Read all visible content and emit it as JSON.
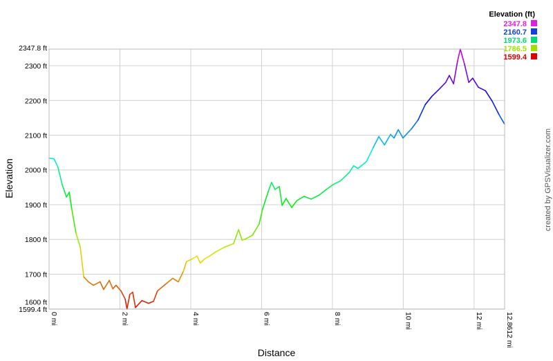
{
  "chart_data": {
    "type": "line",
    "xlabel": "Distance",
    "ylabel": "Elevation",
    "xlim": [
      0,
      12.8612
    ],
    "ylim": [
      1599.4,
      2347.8
    ],
    "grid": true,
    "x_ticks": [
      {
        "value": 0,
        "label": "0 mi"
      },
      {
        "value": 2,
        "label": "2 mi"
      },
      {
        "value": 4,
        "label": "4 mi"
      },
      {
        "value": 6,
        "label": "6 mi"
      },
      {
        "value": 8,
        "label": "8 mi"
      },
      {
        "value": 10,
        "label": "10 mi"
      },
      {
        "value": 12,
        "label": "12 mi"
      },
      {
        "value": 12.8612,
        "label": "12.8612 mi"
      }
    ],
    "y_ticks": [
      {
        "value": 1599.4,
        "label": "1599.4 ft"
      },
      {
        "value": 1600,
        "label": "1600 ft"
      },
      {
        "value": 1700,
        "label": "1700 ft"
      },
      {
        "value": 1800,
        "label": "1800 ft"
      },
      {
        "value": 1900,
        "label": "1900 ft"
      },
      {
        "value": 2000,
        "label": "2000 ft"
      },
      {
        "value": 2100,
        "label": "2100 ft"
      },
      {
        "value": 2200,
        "label": "2200 ft"
      },
      {
        "value": 2300,
        "label": "2300 ft"
      },
      {
        "value": 2347.8,
        "label": "2347.8 ft"
      }
    ],
    "legend": {
      "title": "Elevation (ft)",
      "placement": "top-right",
      "entries": [
        {
          "label": "2347.8",
          "color": "#e020e0"
        },
        {
          "label": "2160.7",
          "color": "#1040e0"
        },
        {
          "label": "1973.6",
          "color": "#00dd70"
        },
        {
          "label": "1786.5",
          "color": "#a0e000"
        },
        {
          "label": "1599.4",
          "color": "#e00000"
        }
      ]
    },
    "color_scale": "elevation gradient red-yellow-green-blue-magenta",
    "x": [
      0,
      0.14,
      0.25,
      0.37,
      0.49,
      0.57,
      0.64,
      0.76,
      0.88,
      0.98,
      1.11,
      1.25,
      1.44,
      1.54,
      1.7,
      1.8,
      1.89,
      2.03,
      2.15,
      2.2,
      2.28,
      2.36,
      2.44,
      2.62,
      2.81,
      2.95,
      3.06,
      3.3,
      3.49,
      3.65,
      3.79,
      3.88,
      4.04,
      4.18,
      4.27,
      4.39,
      4.53,
      4.7,
      4.96,
      5.21,
      5.35,
      5.45,
      5.6,
      5.74,
      5.93,
      6.03,
      6.19,
      6.28,
      6.38,
      6.5,
      6.58,
      6.69,
      6.85,
      7.0,
      7.2,
      7.4,
      7.63,
      7.83,
      8.02,
      8.22,
      8.47,
      8.6,
      8.72,
      8.96,
      9.15,
      9.31,
      9.47,
      9.64,
      9.74,
      9.86,
      9.99,
      10.23,
      10.42,
      10.62,
      10.81,
      11.01,
      11.2,
      11.3,
      11.42,
      11.53,
      11.61,
      11.73,
      11.85,
      11.96,
      12.12,
      12.32,
      12.51,
      12.71,
      12.86
    ],
    "y": [
      2034,
      2032,
      2008,
      1958,
      1922,
      1936,
      1888,
      1818,
      1778,
      1692,
      1678,
      1668,
      1678,
      1656,
      1682,
      1658,
      1668,
      1652,
      1628,
      1599.4,
      1642,
      1648,
      1604,
      1624,
      1616,
      1622,
      1652,
      1672,
      1688,
      1678,
      1708,
      1736,
      1744,
      1752,
      1732,
      1744,
      1752,
      1764,
      1778,
      1788,
      1828,
      1798,
      1804,
      1812,
      1844,
      1888,
      1938,
      1964,
      1944,
      1952,
      1898,
      1918,
      1892,
      1912,
      1924,
      1916,
      1928,
      1944,
      1958,
      1968,
      1992,
      2012,
      2004,
      2024,
      2064,
      2096,
      2072,
      2102,
      2092,
      2116,
      2092,
      2118,
      2144,
      2188,
      2212,
      2232,
      2252,
      2272,
      2248,
      2312,
      2347.8,
      2304,
      2252,
      2264,
      2238,
      2228,
      2198,
      2158,
      2132
    ]
  },
  "credit": "created by GPSVisualizer.com"
}
